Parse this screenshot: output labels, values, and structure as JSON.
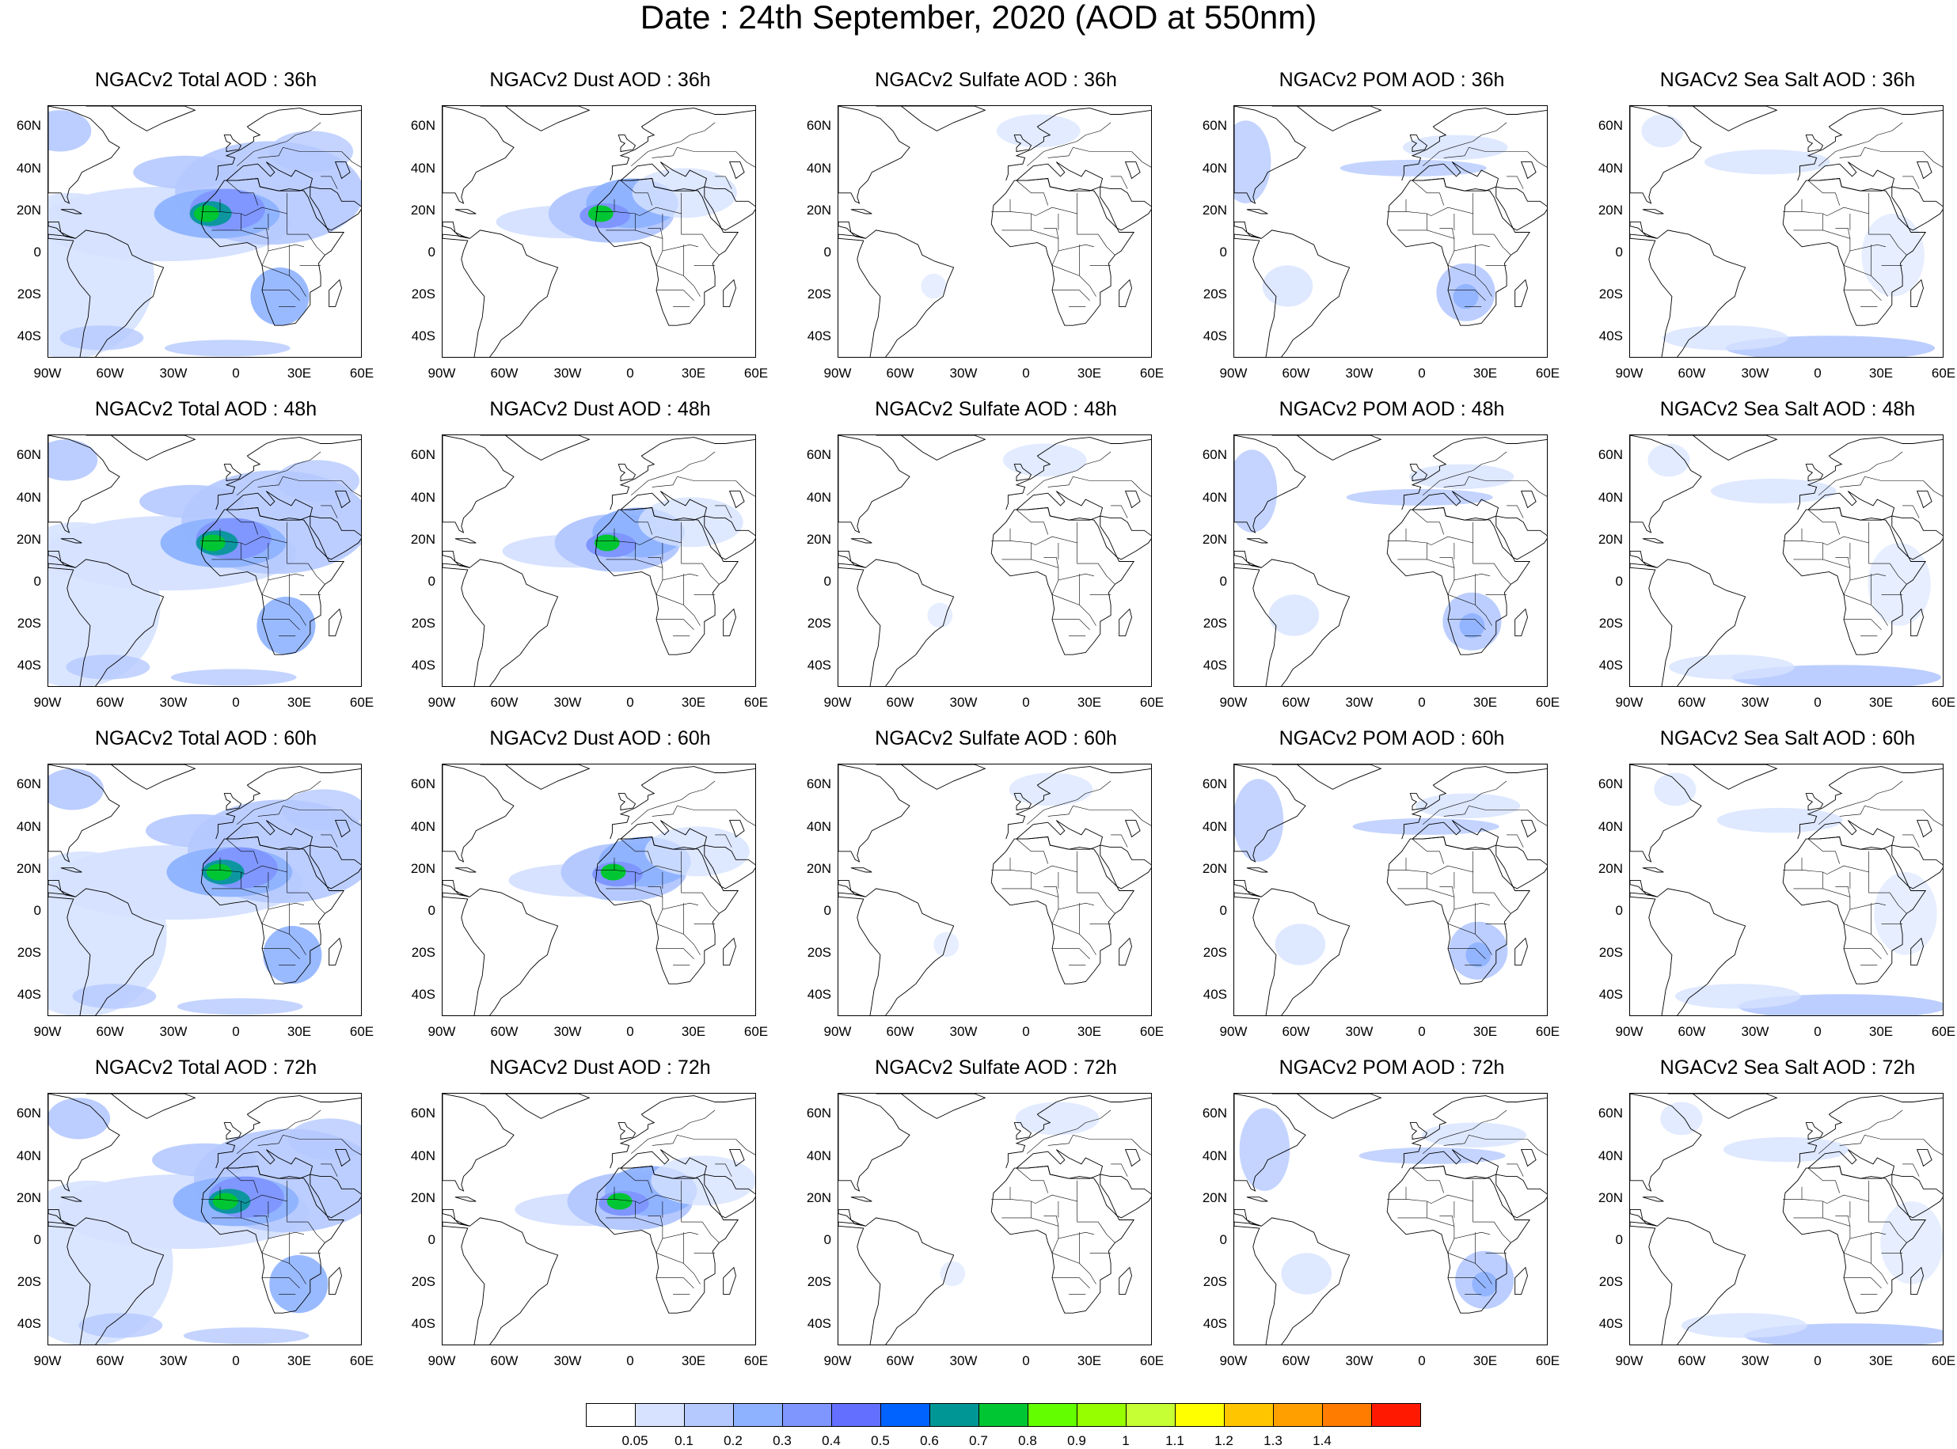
{
  "title": "Date : 24th  September, 2020 (AOD at 550nm)",
  "lat_labels": [
    "60N",
    "40N",
    "20N",
    "0",
    "20S",
    "40S"
  ],
  "lon_labels": [
    "90W",
    "60W",
    "30W",
    "0",
    "30E",
    "60E"
  ],
  "panels": [
    {
      "title": "NGACv2 Total AOD : 36h",
      "species": "total"
    },
    {
      "title": "NGACv2 Dust AOD : 36h",
      "species": "dust"
    },
    {
      "title": "NGACv2 Sulfate AOD : 36h",
      "species": "sulfate"
    },
    {
      "title": "NGACv2 POM AOD : 36h",
      "species": "pom"
    },
    {
      "title": "NGACv2 Sea Salt AOD : 36h",
      "species": "seasalt"
    },
    {
      "title": "NGACv2 Total AOD : 48h",
      "species": "total"
    },
    {
      "title": "NGACv2 Dust AOD : 48h",
      "species": "dust"
    },
    {
      "title": "NGACv2 Sulfate AOD : 48h",
      "species": "sulfate"
    },
    {
      "title": "NGACv2 POM AOD : 48h",
      "species": "pom"
    },
    {
      "title": "NGACv2 Sea Salt AOD : 48h",
      "species": "seasalt"
    },
    {
      "title": "NGACv2 Total AOD : 60h",
      "species": "total"
    },
    {
      "title": "NGACv2 Dust AOD : 60h",
      "species": "dust"
    },
    {
      "title": "NGACv2 Sulfate AOD : 60h",
      "species": "sulfate"
    },
    {
      "title": "NGACv2 POM AOD : 60h",
      "species": "pom"
    },
    {
      "title": "NGACv2 Sea Salt AOD : 60h",
      "species": "seasalt"
    },
    {
      "title": "NGACv2 Total AOD : 72h",
      "species": "total"
    },
    {
      "title": "NGACv2 Dust AOD : 72h",
      "species": "dust"
    },
    {
      "title": "NGACv2 Sulfate AOD : 72h",
      "species": "sulfate"
    },
    {
      "title": "NGACv2 POM AOD : 72h",
      "species": "pom"
    },
    {
      "title": "NGACv2 Sea Salt  AOD : 72h",
      "species": "seasalt"
    }
  ],
  "colorbar": {
    "colors": [
      "#ffffff",
      "#d6e2ff",
      "#b5c9ff",
      "#8eb2ff",
      "#7f96ff",
      "#6370ff",
      "#0063ff",
      "#009696",
      "#00c633",
      "#63ff00",
      "#96ff00",
      "#c6ff33",
      "#ffff00",
      "#ffc600",
      "#ffa000",
      "#ff7c00",
      "#ff1900"
    ],
    "labels": [
      "0.05",
      "0.1",
      "0.2",
      "0.3",
      "0.4",
      "0.5",
      "0.6",
      "0.7",
      "0.8",
      "0.9",
      "1",
      "1.1",
      "1.2",
      "1.3",
      "1.4"
    ]
  }
}
